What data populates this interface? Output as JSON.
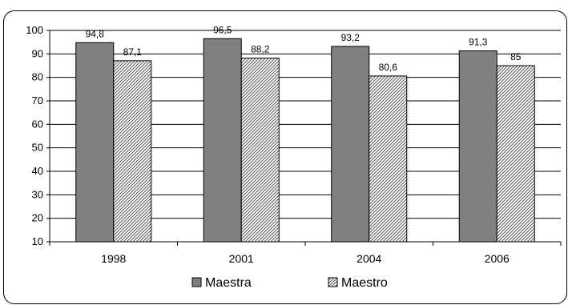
{
  "chart_data": {
    "type": "bar",
    "categories": [
      "1998",
      "2001",
      "2004",
      "2006"
    ],
    "series": [
      {
        "name": "Maestra",
        "values": [
          94.8,
          96.5,
          93.2,
          91.3
        ],
        "labels": [
          "94,8",
          "96,5",
          "93,2",
          "91,3"
        ],
        "color": "#808080",
        "pattern": "solid"
      },
      {
        "name": "Maestro",
        "values": [
          87.1,
          88.2,
          80.6,
          85
        ],
        "labels": [
          "87,1",
          "88,2",
          "80,6",
          "85"
        ],
        "color": "#ffffff",
        "pattern": "diagonal-hatch"
      }
    ],
    "ylim": [
      10,
      100
    ],
    "yticks": [
      10,
      20,
      30,
      40,
      50,
      60,
      70,
      80,
      90,
      100
    ],
    "grid": true,
    "legend": "bottom"
  }
}
